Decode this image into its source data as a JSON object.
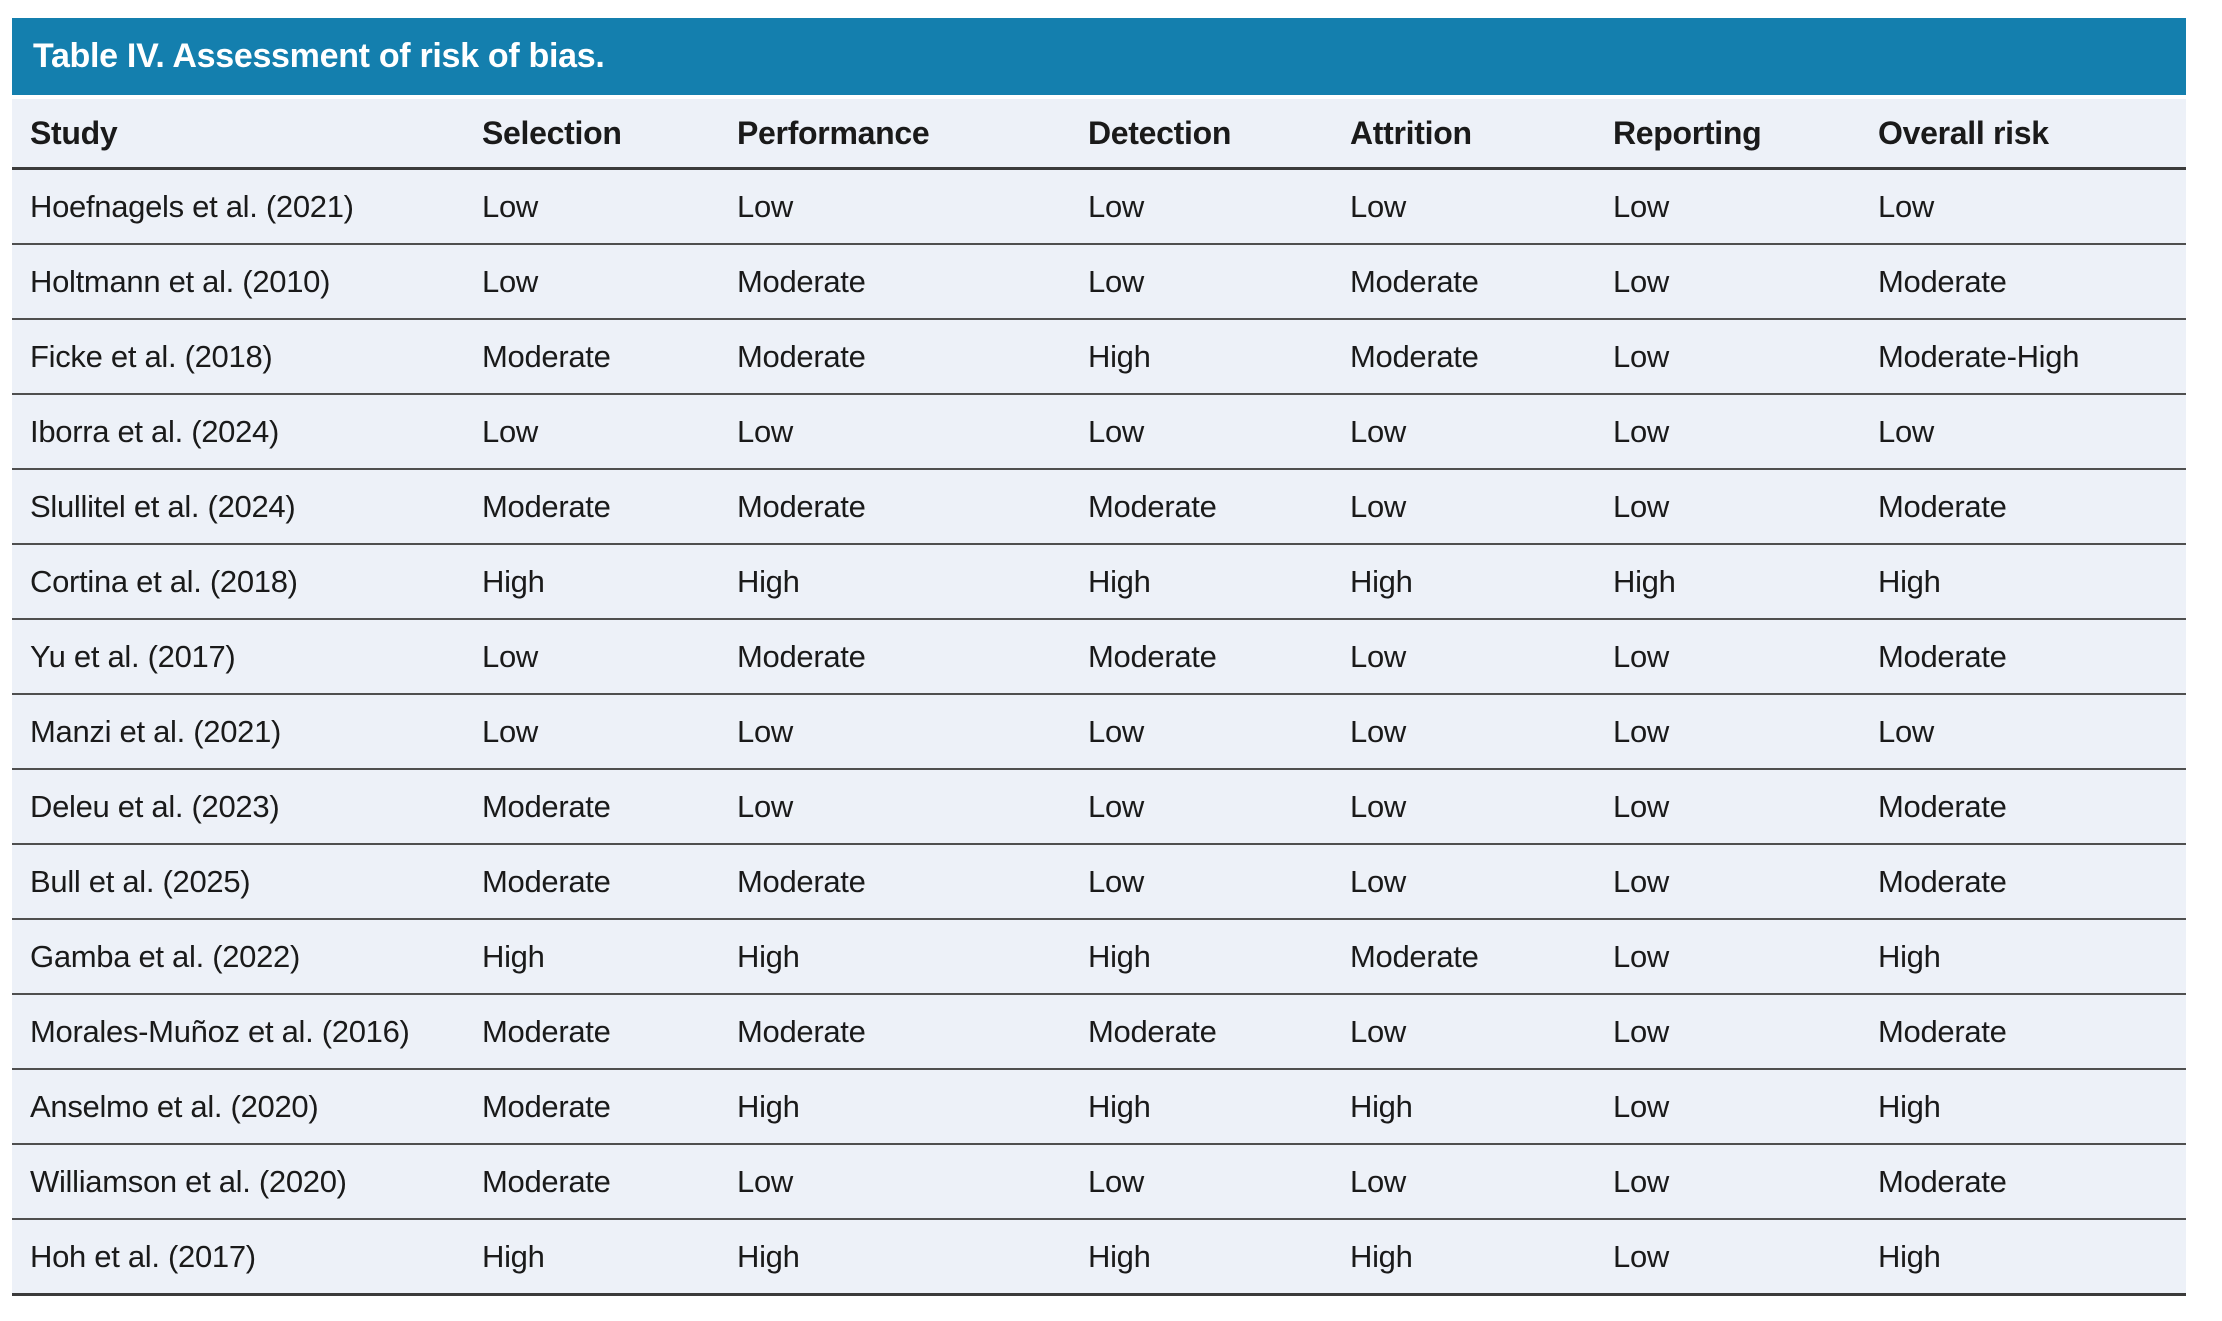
{
  "table": {
    "title": "Table IV. Assessment of risk of bias.",
    "columns": [
      "Study",
      "Selection",
      "Performance",
      "Detection",
      "Attrition",
      "Reporting",
      "Overall risk"
    ],
    "rows": [
      {
        "study": "Hoefnagels et al. (2021)",
        "values": [
          "Low",
          "Low",
          "Low",
          "Low",
          "Low",
          "Low"
        ]
      },
      {
        "study": "Holtmann et al. (2010)",
        "values": [
          "Low",
          "Moderate",
          "Low",
          "Moderate",
          "Low",
          "Moderate"
        ]
      },
      {
        "study": "Ficke et al. (2018)",
        "values": [
          "Moderate",
          "Moderate",
          "High",
          "Moderate",
          "Low",
          "Moderate-High"
        ]
      },
      {
        "study": "Iborra et al. (2024)",
        "values": [
          "Low",
          "Low",
          "Low",
          "Low",
          "Low",
          "Low"
        ]
      },
      {
        "study": "Slullitel et al. (2024)",
        "values": [
          "Moderate",
          "Moderate",
          "Moderate",
          "Low",
          "Low",
          "Moderate"
        ]
      },
      {
        "study": "Cortina et al. (2018)",
        "values": [
          "High",
          "High",
          "High",
          "High",
          "High",
          "High"
        ]
      },
      {
        "study": "Yu et al. (2017)",
        "values": [
          "Low",
          "Moderate",
          "Moderate",
          "Low",
          "Low",
          "Moderate"
        ]
      },
      {
        "study": "Manzi et al. (2021)",
        "values": [
          "Low",
          "Low",
          "Low",
          "Low",
          "Low",
          "Low"
        ]
      },
      {
        "study": "Deleu et al. (2023)",
        "values": [
          "Moderate",
          "Low",
          "Low",
          "Low",
          "Low",
          "Moderate"
        ]
      },
      {
        "study": "Bull et al. (2025)",
        "values": [
          "Moderate",
          "Moderate",
          "Low",
          "Low",
          "Low",
          "Moderate"
        ]
      },
      {
        "study": "Gamba et al. (2022)",
        "values": [
          "High",
          "High",
          "High",
          "Moderate",
          "Low",
          "High"
        ]
      },
      {
        "study": "Morales-Muñoz et al. (2016)",
        "values": [
          "Moderate",
          "Moderate",
          "Moderate",
          "Low",
          "Low",
          "Moderate"
        ]
      },
      {
        "study": "Anselmo et al. (2020)",
        "values": [
          "Moderate",
          "High",
          "High",
          "High",
          "Low",
          "High"
        ]
      },
      {
        "study": "Williamson et al. (2020)",
        "values": [
          "Moderate",
          "Low",
          "Low",
          "Low",
          "Low",
          "Moderate"
        ]
      },
      {
        "study": "Hoh et al. (2017)",
        "values": [
          "High",
          "High",
          "High",
          "High",
          "Low",
          "High"
        ]
      }
    ]
  },
  "colors": {
    "header_bar": "#147fae",
    "title_text": "#ffffff",
    "row_background": "#edf1f8",
    "rule_dark": "#3b3b3b",
    "rule_row": "#4f4f4f",
    "text": "#1a1a1a"
  }
}
